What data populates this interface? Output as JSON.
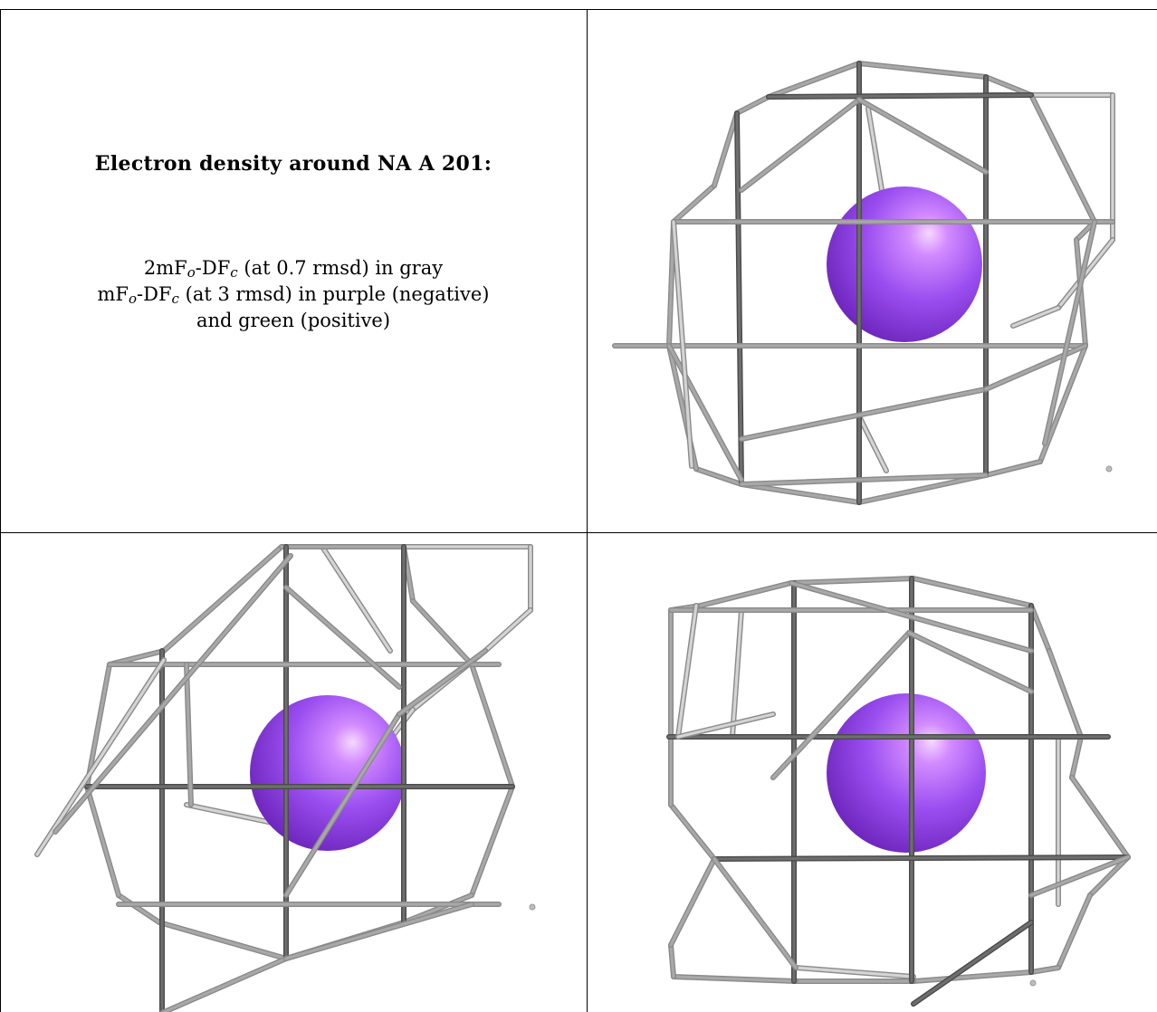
{
  "caption": {
    "title": "Electron density around NA A 201:",
    "line1": {
      "prefix": "2mF",
      "sub1": "o",
      "mid": "-DF",
      "sub2": "c",
      "suffix": " (at 0.7 rmsd) in gray"
    },
    "line2": {
      "prefix": "mF",
      "sub1": "o",
      "mid": "-DF",
      "sub2": "c",
      "suffix": " (at 3 rmsd) in purple (negative)"
    },
    "line3": "and green (positive)"
  },
  "colors": {
    "mesh_light": "#d4d4d4",
    "mesh_mid": "#a8a8a8",
    "mesh_dark": "#6e6e6e",
    "atom_sphere": "#9a4ef0",
    "atom_highlight": "#f6d8ff",
    "grid_line": "#000000"
  },
  "panels": [
    {
      "view": "top-right",
      "atom": "NA A 201"
    },
    {
      "view": "bottom-left",
      "atom": "NA A 201"
    },
    {
      "view": "bottom-right",
      "atom": "NA A 201"
    }
  ]
}
